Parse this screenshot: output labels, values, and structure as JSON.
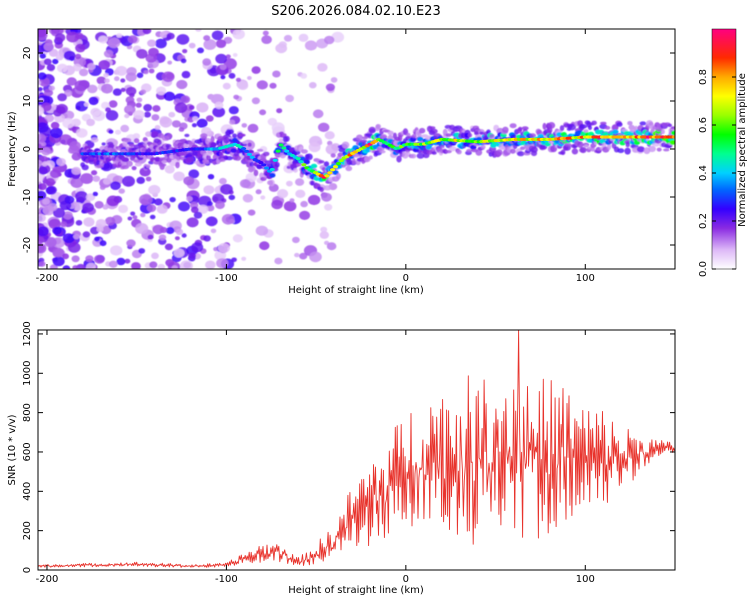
{
  "title": "S206.2026.084.02.10.E23",
  "colorbar": {
    "label": "Normalized spectral amplitude",
    "ticks": [
      "0.0",
      "0.2",
      "0.4",
      "0.6",
      "0.8"
    ]
  },
  "chart_data": [
    {
      "type": "heatmap",
      "name": "spectrogram",
      "title": "",
      "xlabel": "Height of straight line (km)",
      "ylabel": "Frequency (Hz)",
      "xlim": [
        -205,
        150
      ],
      "ylim": [
        -25,
        25
      ],
      "x_ticks": [
        "-200",
        "-100",
        "0",
        "100"
      ],
      "y_ticks": [
        "-20",
        "-10",
        "0",
        "10",
        "20"
      ],
      "ridge": {
        "x": [
          -170,
          -155,
          -140,
          -120,
          -105,
          -95,
          -90,
          -85,
          -80,
          -75,
          -70,
          -65,
          -60,
          -55,
          -50,
          -45,
          -40,
          -35,
          -30,
          -25,
          -20,
          -15,
          -10,
          -5,
          0,
          10,
          20,
          40,
          60,
          80,
          100,
          120,
          150
        ],
        "frequency": [
          -1,
          -1,
          -1,
          0,
          0,
          1,
          0,
          -2,
          -3,
          -5,
          1,
          -1,
          -2,
          -4,
          -5,
          -6,
          -4,
          -2,
          -1,
          0,
          1,
          2,
          1,
          0,
          1,
          1,
          2,
          1.5,
          2,
          2,
          2.5,
          2.5,
          2.5
        ],
        "amplitude": [
          0.35,
          0.3,
          0.3,
          0.3,
          0.4,
          0.45,
          0.4,
          0.35,
          0.3,
          0.45,
          0.5,
          0.45,
          0.55,
          0.6,
          0.7,
          0.9,
          0.7,
          0.75,
          0.8,
          0.6,
          0.95,
          0.7,
          0.6,
          0.55,
          0.6,
          0.65,
          0.7,
          0.7,
          0.75,
          0.8,
          0.85,
          0.9,
          0.95
        ]
      }
    },
    {
      "type": "line",
      "name": "snr",
      "title": "",
      "xlabel": "Height of straight line (km)",
      "ylabel": "SNR (10 * v/v)",
      "xlim": [
        -205,
        150
      ],
      "ylim": [
        0,
        1220
      ],
      "x_ticks": [
        "-200",
        "-100",
        "0",
        "100"
      ],
      "y_ticks": [
        "0",
        "200",
        "400",
        "600",
        "800",
        "1000",
        "1200"
      ],
      "color": "#e8332c",
      "envelope": {
        "x": [
          -205,
          -180,
          -150,
          -120,
          -100,
          -90,
          -80,
          -70,
          -60,
          -50,
          -40,
          -30,
          -20,
          -10,
          0,
          10,
          20,
          30,
          40,
          50,
          60,
          70,
          80,
          90,
          100,
          110,
          120,
          130,
          140,
          150
        ],
        "base": [
          20,
          25,
          30,
          20,
          25,
          60,
          90,
          90,
          40,
          80,
          140,
          270,
          350,
          400,
          520,
          560,
          560,
          560,
          540,
          600,
          620,
          560,
          580,
          600,
          560,
          580,
          560,
          600,
          620,
          620
        ],
        "amplitude": [
          10,
          12,
          15,
          12,
          15,
          40,
          70,
          70,
          30,
          80,
          130,
          230,
          320,
          380,
          430,
          480,
          540,
          620,
          600,
          600,
          620,
          580,
          560,
          500,
          420,
          350,
          250,
          150,
          60,
          40
        ]
      },
      "max": 1220,
      "max_x": 63
    }
  ]
}
